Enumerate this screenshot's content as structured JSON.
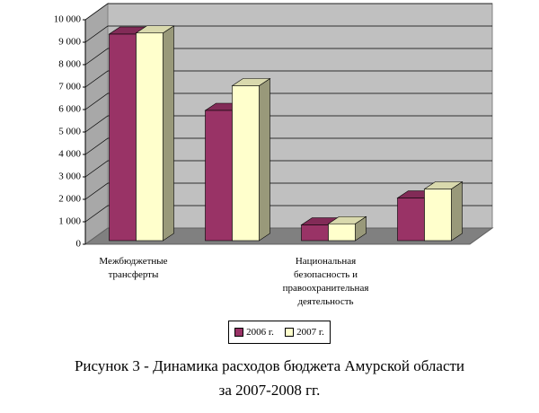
{
  "chart_data": {
    "type": "bar3d",
    "title": "Рисунок 3 -  Динамика расходов бюджета Амурской области за 2007-2008 гг.",
    "categories": [
      "Межбюджетные трансферты",
      null,
      "Национальная безопасность и правоохранительная деятельность",
      null
    ],
    "series": [
      {
        "name": "2006 г.",
        "color": "#993366",
        "values": [
          9200,
          5800,
          700,
          1900
        ]
      },
      {
        "name": "2007 г.",
        "color": "#ffffcc",
        "values": [
          9250,
          6900,
          750,
          2300
        ]
      }
    ],
    "ylim": [
      0,
      10000
    ],
    "yticks": [
      0,
      {
        "value": 1000,
        "label": "1 000"
      },
      {
        "value": 2000,
        "label": "2 000"
      },
      {
        "value": 3000,
        "label": "3 000"
      },
      {
        "value": 4000,
        "label": "4 000"
      },
      {
        "value": 5000,
        "label": "5 000"
      },
      {
        "value": 6000,
        "label": "6 000"
      },
      {
        "value": 7000,
        "label": "7 000"
      },
      {
        "value": 8000,
        "label": "8 000"
      },
      {
        "value": 9000,
        "label": "9 000"
      },
      {
        "value": 10000,
        "label": "10 000"
      }
    ],
    "grid": true,
    "legend": "bottom"
  }
}
